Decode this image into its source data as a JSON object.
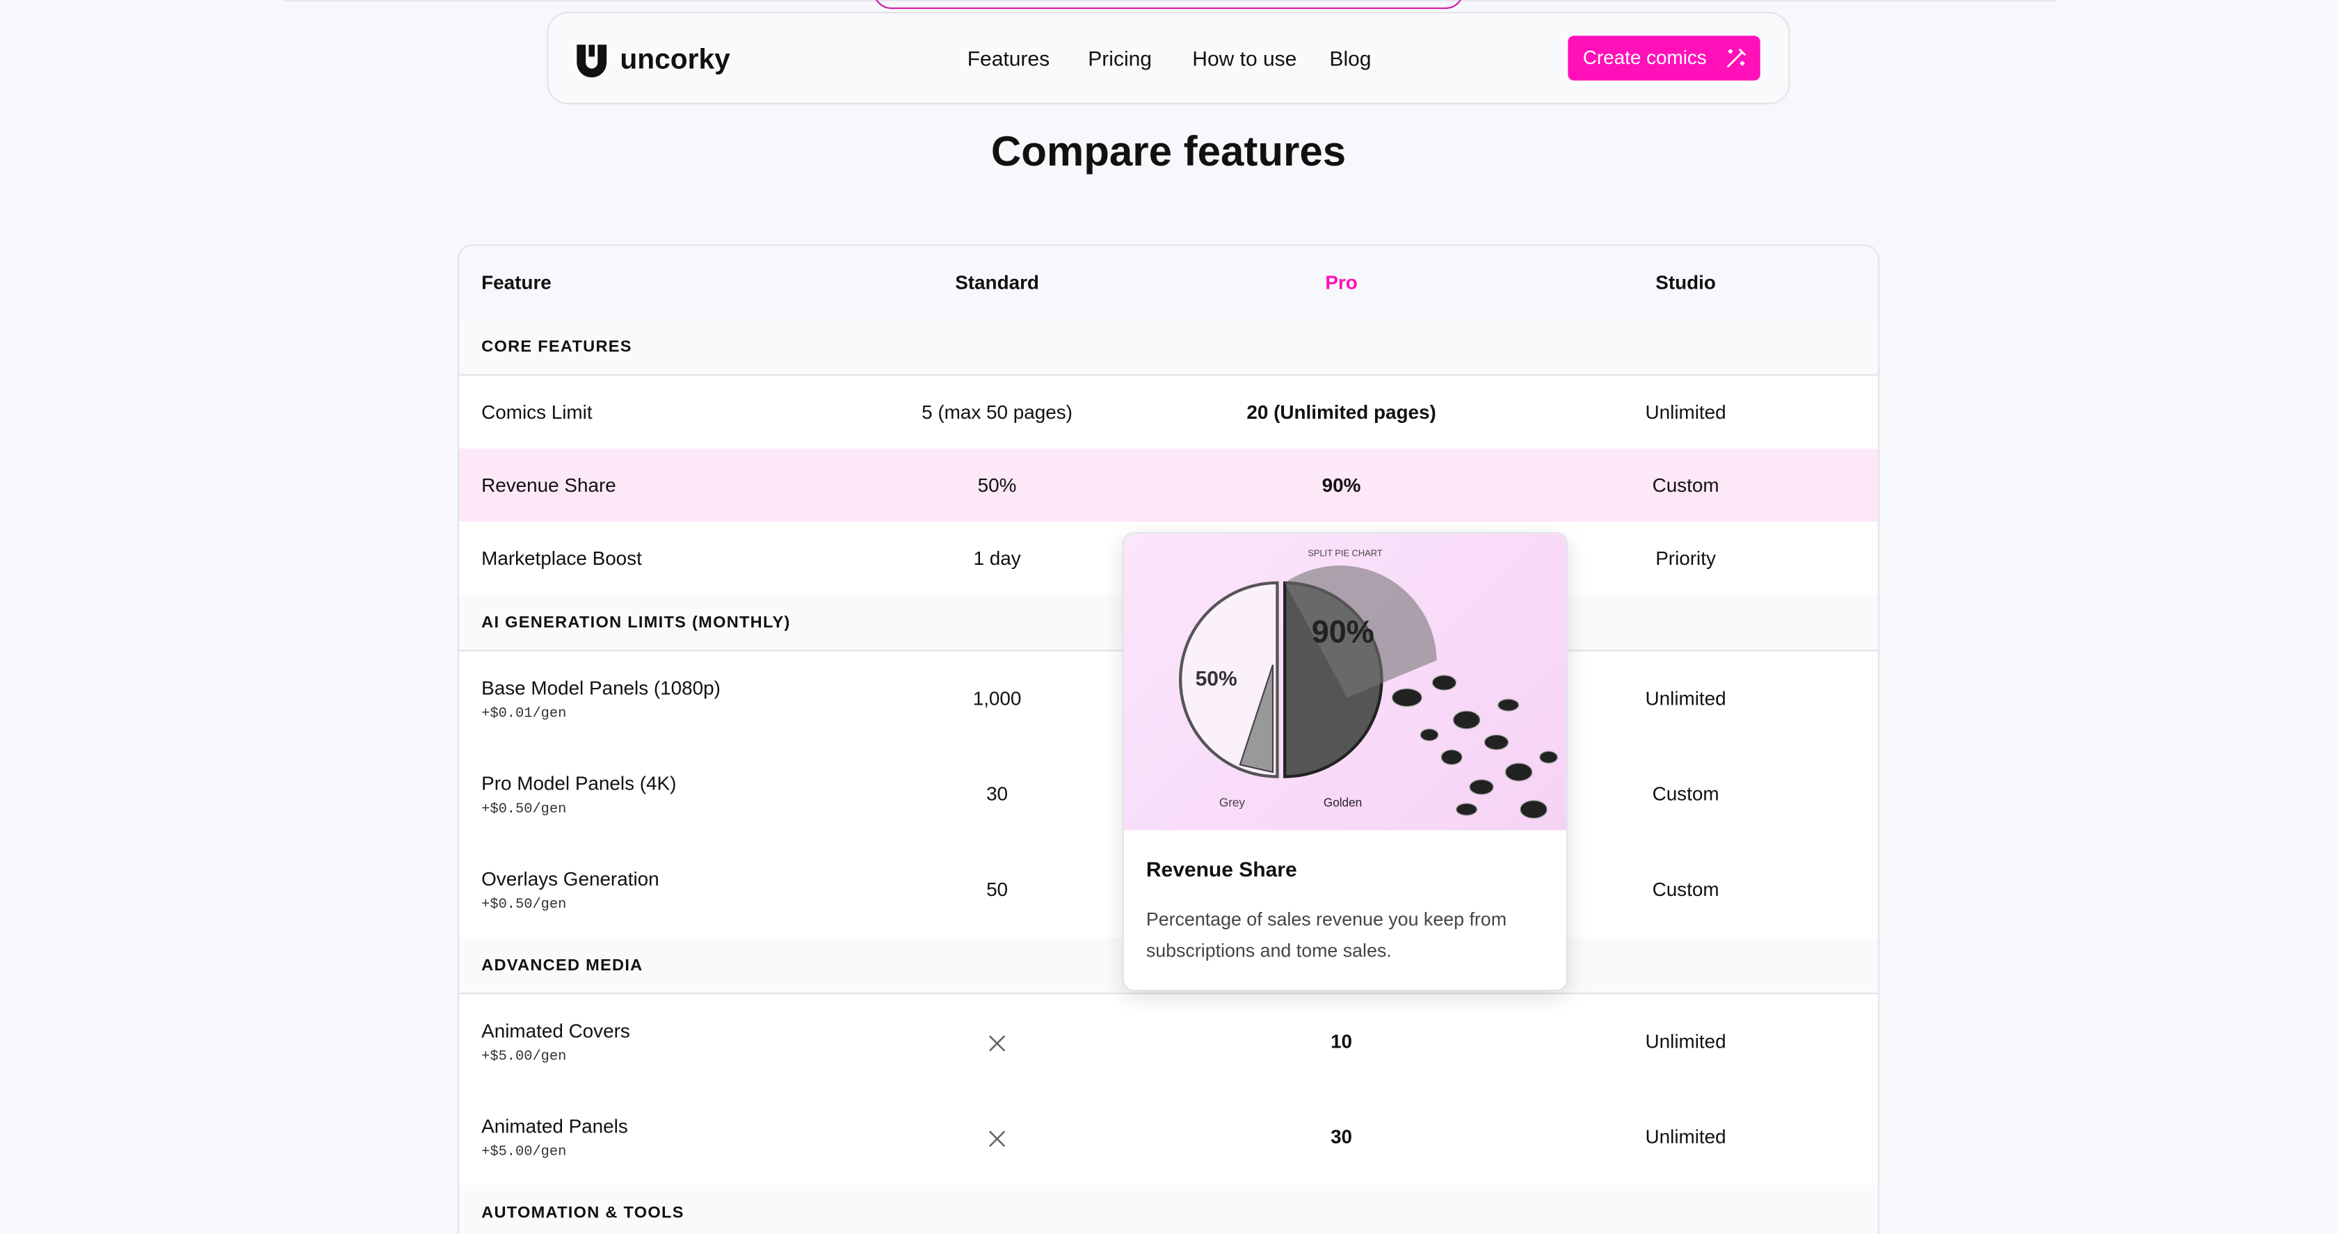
{
  "nav": {
    "brand": "uncorky",
    "links": [
      "Features",
      "Pricing",
      "How to use",
      "Blog"
    ],
    "cta": "Create comics"
  },
  "heading": "Compare features",
  "table": {
    "columns": [
      "Feature",
      "Standard",
      "Pro",
      "Studio"
    ],
    "sections": [
      {
        "title": "CORE FEATURES",
        "rows": [
          {
            "feature": "Comics Limit",
            "standard": "5 (max 50 pages)",
            "pro": "20 (Unlimited pages)",
            "studio": "Unlimited"
          },
          {
            "feature": "Revenue Share",
            "standard": "50%",
            "pro": "90%",
            "studio": "Custom",
            "highlight": true
          },
          {
            "feature": "Marketplace Boost",
            "standard": "1 day",
            "studio": "Priority"
          }
        ]
      },
      {
        "title": "AI GENERATION LIMITS (MONTHLY)",
        "rows": [
          {
            "feature": "Base Model Panels (1080p)",
            "sub": "+$0.01/gen",
            "standard": "1,000",
            "studio": "Unlimited"
          },
          {
            "feature": "Pro Model Panels (4K)",
            "sub": "+$0.50/gen",
            "standard": "30",
            "studio": "Custom"
          },
          {
            "feature": "Overlays Generation",
            "sub": "+$0.50/gen",
            "standard": "50",
            "studio": "Custom"
          }
        ]
      },
      {
        "title": "ADVANCED MEDIA",
        "rows": [
          {
            "feature": "Animated Covers",
            "sub": "+$5.00/gen",
            "standard_included": false,
            "pro": "10",
            "studio": "Unlimited"
          },
          {
            "feature": "Animated Panels",
            "sub": "+$5.00/gen",
            "standard_included": false,
            "pro": "30",
            "studio": "Unlimited"
          }
        ]
      },
      {
        "title": "AUTOMATION & TOOLS",
        "rows": []
      }
    ]
  },
  "tooltip": {
    "image_caption": "SPLIT PIE CHART",
    "left_label": "50%",
    "right_label": "90%",
    "legend": [
      "Grey",
      "Golden"
    ],
    "title": "Revenue Share",
    "description": "Percentage of sales revenue you keep from subscriptions and tome sales."
  }
}
